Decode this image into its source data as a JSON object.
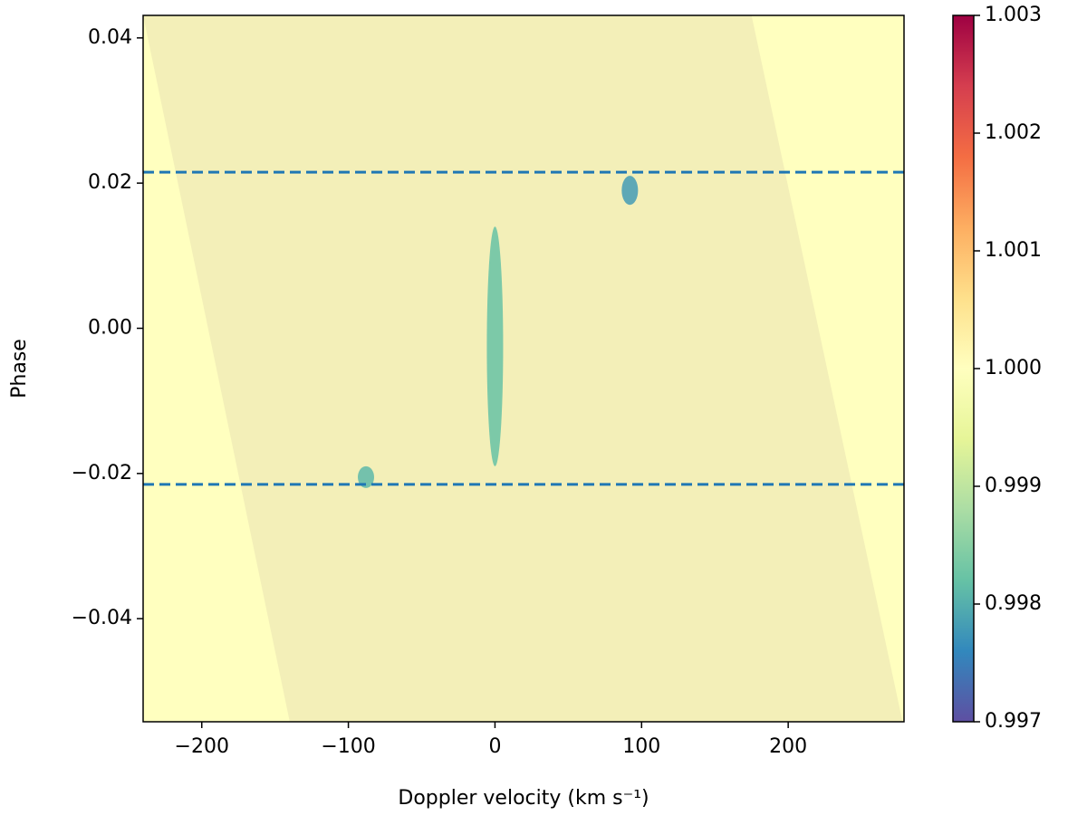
{
  "chart_data": {
    "type": "heatmap",
    "xlabel": "Doppler velocity (km s⁻¹)",
    "ylabel": "Phase",
    "xlim": [
      -240,
      279
    ],
    "ylim": [
      -0.0542,
      0.0431
    ],
    "xticks": [
      {
        "value": -200,
        "label": "−200"
      },
      {
        "value": -100,
        "label": "−100"
      },
      0,
      100,
      200
    ],
    "yticks": [
      0.04,
      0.02,
      {
        "value": 0,
        "label": "0.00"
      },
      {
        "value": -0.02,
        "label": "−0.02"
      },
      {
        "value": -0.04,
        "label": "−0.04"
      }
    ],
    "coverage": {
      "top": [
        -240,
        175
      ],
      "bottom": [
        -140,
        278
      ]
    },
    "background": 1.0,
    "features": [
      {
        "x": 0,
        "y": [
          -0.019,
          0.014
        ],
        "value": 0.9982
      },
      {
        "x": 92,
        "y": [
          0.017,
          0.021
        ],
        "value": 0.9978
      },
      {
        "x": -88,
        "y": [
          -0.022,
          -0.019
        ],
        "value": 0.9981
      }
    ],
    "hlines": [
      0.0215,
      -0.0215
    ],
    "hline_color": "#1f77b4",
    "colormap": [
      "#5e4fa2",
      "#3288bd",
      "#66c2a5",
      "#abdda4",
      "#e6f598",
      "#ffffbf",
      "#fee08b",
      "#fdae61",
      "#f46d43",
      "#d53e4f",
      "#9e0142"
    ],
    "clim": [
      0.997,
      1.003
    ],
    "cticks": [
      0.997,
      0.998,
      0.999,
      {
        "value": 1.0,
        "label": "1.000"
      },
      1.001,
      1.002,
      1.003
    ]
  }
}
